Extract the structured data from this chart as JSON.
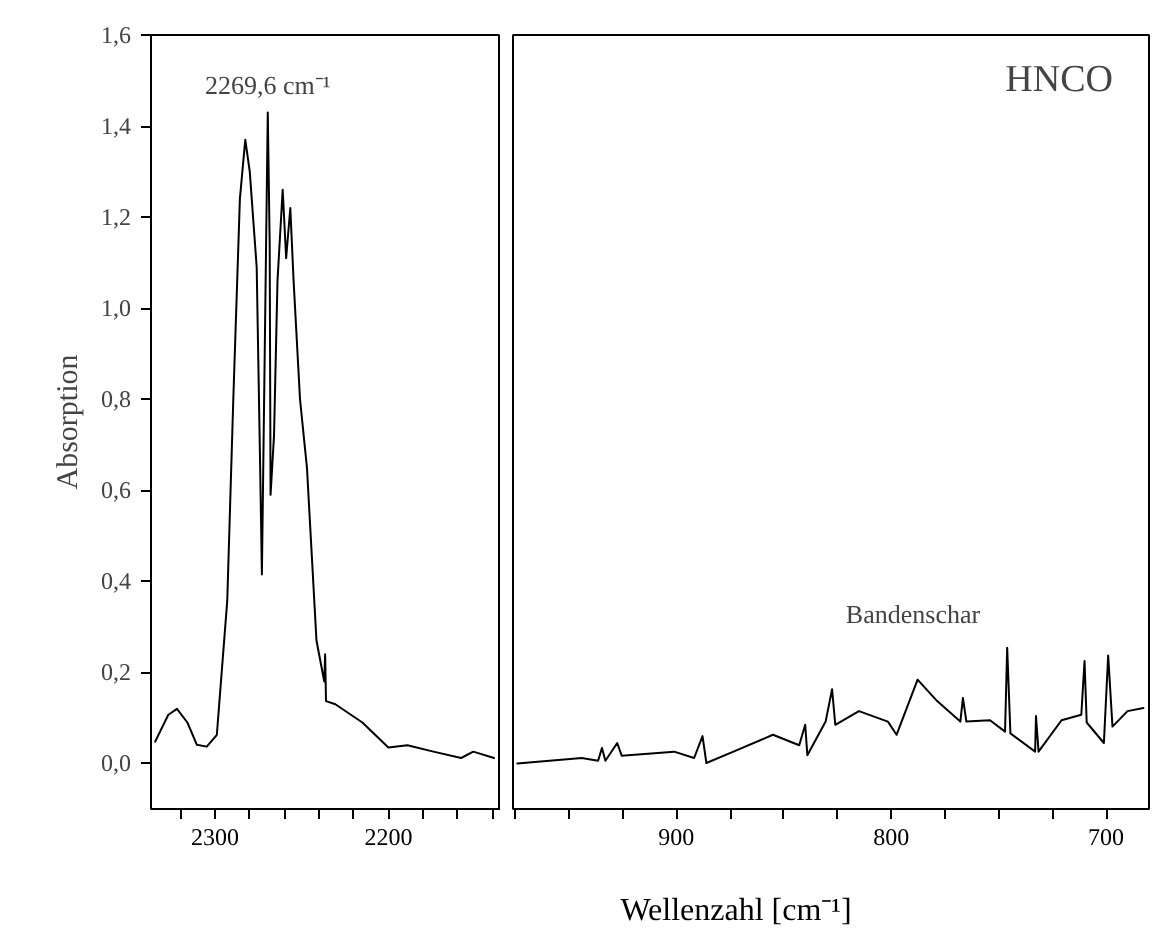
{
  "chart_data": [
    {
      "type": "line",
      "ylabel": "Absorption",
      "tick_labels": "xy",
      "xlim": [
        2337,
        2135
      ],
      "ylim": [
        -0.1,
        1.6
      ],
      "xticks": [
        {
          "value": 2320,
          "label": null
        },
        2300,
        {
          "value": 2280,
          "label": null
        },
        {
          "value": 2260,
          "label": null
        },
        {
          "value": 2240,
          "label": null
        },
        {
          "value": 2220,
          "label": null
        },
        2200,
        {
          "value": 2180,
          "label": null
        },
        {
          "value": 2160,
          "label": null
        },
        {
          "value": 2140,
          "label": null
        }
      ],
      "yticks": [
        {
          "value": 0,
          "label": "0,0"
        },
        {
          "value": 0.2,
          "label": "0,2"
        },
        {
          "value": 0.4,
          "label": "0,4"
        },
        {
          "value": 0.6,
          "label": "0,6"
        },
        {
          "value": 0.8,
          "label": "0,8"
        },
        {
          "value": 1.0,
          "label": "1,0"
        },
        {
          "value": 1.2,
          "label": "1,2"
        },
        {
          "value": 1.4,
          "label": "1,4"
        },
        {
          "value": 1.6,
          "label": "1,6"
        }
      ],
      "annotations": [
        {
          "text": "2269,6 cm⁻¹",
          "x": 2269.6,
          "y": 1.43
        }
      ],
      "series": [
        {
          "color": "#000000",
          "x": [
            2334.6,
            2327,
            2322,
            2316,
            2310.5,
            2304.8,
            2299,
            2293,
            2289.5,
            2285.7,
            2282.6,
            2280,
            2276,
            2274,
            2273,
            2269.6,
            2268.5,
            2268,
            2266,
            2264,
            2261,
            2259,
            2256.6,
            2254.7,
            2251,
            2247,
            2241.5,
            2237,
            2236.5,
            2236,
            2230.6,
            2215,
            2200,
            2189,
            2174,
            2158,
            2151,
            2139
          ],
          "values": [
            0.048,
            0.107,
            0.12,
            0.09,
            0.041,
            0.037,
            0.063,
            0.357,
            0.8,
            1.24,
            1.37,
            1.3,
            1.09,
            0.65,
            0.415,
            1.43,
            1.14,
            0.59,
            0.72,
            1.06,
            1.26,
            1.11,
            1.22,
            1.06,
            0.8,
            0.65,
            0.27,
            0.18,
            0.24,
            0.137,
            0.13,
            0.09,
            0.035,
            0.04,
            0.026,
            0.012,
            0.026,
            0.012
          ]
        }
      ]
    },
    {
      "type": "line",
      "xlabel": "Wellenzahl [cm⁻¹]",
      "tick_labels": "x",
      "xlim": [
        976,
        680
      ],
      "ylim": [
        -0.1,
        1.6
      ],
      "xticks": [
        {
          "value": 975,
          "label": null
        },
        {
          "value": 950,
          "label": null
        },
        {
          "value": 925,
          "label": null
        },
        900,
        {
          "value": 875,
          "label": null
        },
        {
          "value": 850,
          "label": null
        },
        {
          "value": 825,
          "label": null
        },
        800,
        {
          "value": 775,
          "label": null
        },
        {
          "value": 750,
          "label": null
        },
        {
          "value": 725,
          "label": null
        },
        700
      ],
      "annotations": [
        "HNCO",
        "Bandenschar"
      ],
      "series": [
        {
          "color": "#000000",
          "x": [
            974,
            944,
            936.4,
            934.6,
            933,
            927.5,
            925.4,
            901,
            891.7,
            887.8,
            886,
            873.4,
            855,
            842.8,
            840,
            839,
            830.5,
            827.5,
            826,
            815,
            801.5,
            797.5,
            787.7,
            778.6,
            767.8,
            766.6,
            765,
            754,
            747,
            746,
            744.5,
            733,
            732.6,
            731.4,
            720.7,
            711.5,
            710,
            709,
            701,
            699,
            697,
            690,
            682.6
          ],
          "values": [
            0.0,
            0.012,
            0.006,
            0.034,
            0.006,
            0.045,
            0.017,
            0.026,
            0.012,
            0.06,
            0.001,
            0.026,
            0.063,
            0.04,
            0.085,
            0.018,
            0.092,
            0.163,
            0.085,
            0.115,
            0.092,
            0.063,
            0.184,
            0.137,
            0.092,
            0.144,
            0.092,
            0.095,
            0.07,
            0.254,
            0.066,
            0.026,
            0.104,
            0.026,
            0.095,
            0.107,
            0.225,
            0.09,
            0.045,
            0.237,
            0.081,
            0.115,
            0.122
          ]
        }
      ]
    }
  ]
}
